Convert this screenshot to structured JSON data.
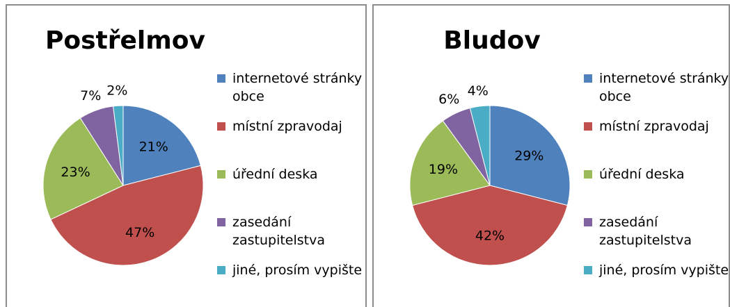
{
  "chart_data": [
    {
      "type": "pie",
      "title": "Postřelmov",
      "categories": [
        "internetové stránky obce",
        "místní zpravodaj",
        "úřední deska",
        "zasedání zastupitelstva",
        "jiné, prosím vypište"
      ],
      "values": [
        21,
        47,
        23,
        7,
        2
      ],
      "value_labels": [
        "21%",
        "47%",
        "23%",
        "7%",
        "2%"
      ],
      "colors": [
        "#4f81bd",
        "#c0504d",
        "#9bbb59",
        "#8064a2",
        "#4bacc6"
      ]
    },
    {
      "type": "pie",
      "title": "Bludov",
      "categories": [
        "internetové stránky obce",
        "místní zpravodaj",
        "úřední deska",
        "zasedání zastupitelstva",
        "jiné, prosím vypište"
      ],
      "values": [
        29,
        42,
        19,
        6,
        4
      ],
      "value_labels": [
        "29%",
        "42%",
        "19%",
        "6%",
        "4%"
      ],
      "colors": [
        "#4f81bd",
        "#c0504d",
        "#9bbb59",
        "#8064a2",
        "#4bacc6"
      ]
    }
  ]
}
